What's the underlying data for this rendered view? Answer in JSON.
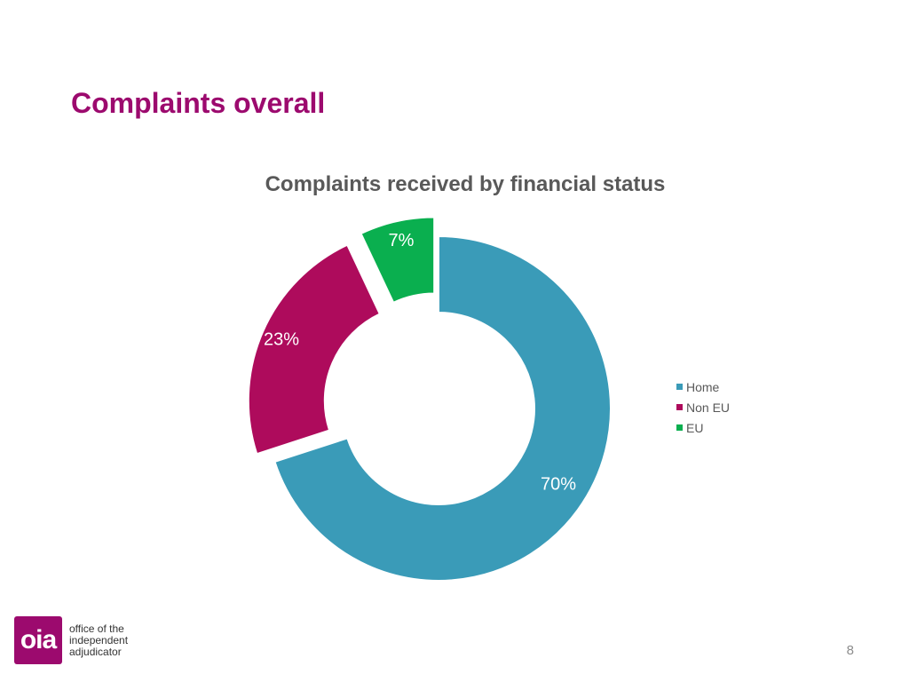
{
  "slide": {
    "title": "Complaints overall",
    "page_number": "8"
  },
  "logo": {
    "mark": "oia",
    "lines": [
      "office of the",
      "independent",
      "adjudicator"
    ],
    "color": "#9c0a6e"
  },
  "chart_data": {
    "type": "pie",
    "variant": "donut",
    "title": "Complaints received by financial status",
    "categories": [
      "Home",
      "Non EU",
      "EU"
    ],
    "values": [
      70,
      23,
      7
    ],
    "data_labels": [
      "70%",
      "23%",
      "7%"
    ],
    "colors": [
      "#3a9bb8",
      "#ae0b5c",
      "#0aaf4f"
    ],
    "legend": {
      "placement": "right",
      "entries": [
        "Home",
        "Non EU",
        "EU"
      ]
    }
  }
}
